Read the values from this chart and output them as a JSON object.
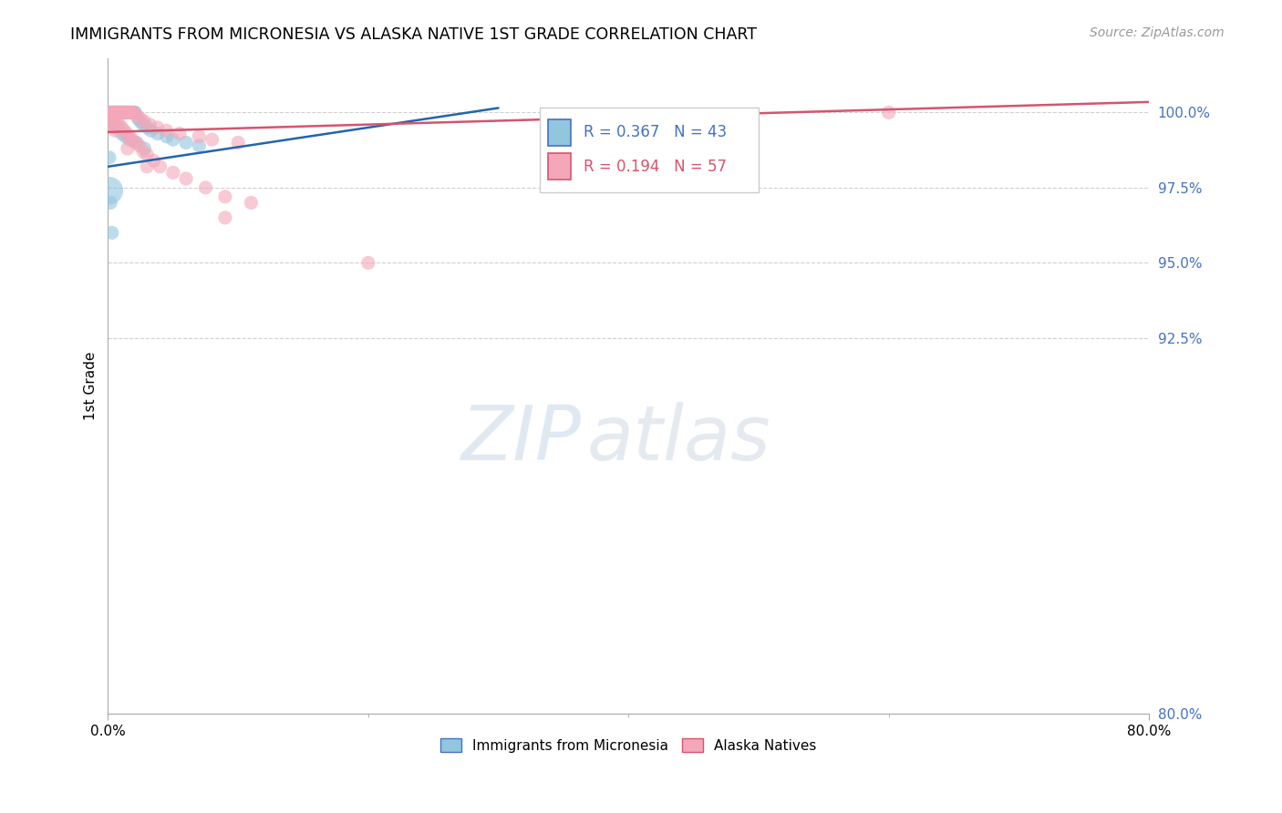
{
  "title": "IMMIGRANTS FROM MICRONESIA VS ALASKA NATIVE 1ST GRADE CORRELATION CHART",
  "source": "Source: ZipAtlas.com",
  "ylabel": "1st Grade",
  "yticks": [
    80.0,
    92.5,
    95.0,
    97.5,
    100.0
  ],
  "ytick_labels": [
    "80.0%",
    "92.5%",
    "95.0%",
    "97.5%",
    "100.0%"
  ],
  "xmin": 0.0,
  "xmax": 80.0,
  "ymin": 80.0,
  "ymax": 101.8,
  "legend_label1": "Immigrants from Micronesia",
  "legend_label2": "Alaska Natives",
  "r1": 0.367,
  "n1": 43,
  "r2": 0.194,
  "n2": 57,
  "color1": "#92c5de",
  "color2": "#f4a7b9",
  "trendline1_color": "#2166ac",
  "trendline2_color": "#d6546e",
  "watermark_zip": "ZIP",
  "watermark_atlas": "atlas",
  "blue_scatter_x": [
    0.2,
    0.3,
    0.4,
    0.5,
    0.6,
    0.7,
    0.8,
    0.9,
    1.0,
    1.1,
    1.2,
    1.3,
    1.4,
    1.5,
    1.6,
    1.7,
    1.8,
    1.9,
    2.0,
    2.1,
    2.3,
    2.5,
    2.7,
    3.0,
    3.3,
    3.8,
    4.5,
    5.0,
    6.0,
    7.0,
    0.15,
    0.25,
    0.35,
    0.55,
    0.75,
    1.05,
    1.35,
    1.65,
    2.2,
    2.8,
    0.1,
    0.2,
    0.3
  ],
  "blue_scatter_y": [
    100.0,
    100.0,
    100.0,
    100.0,
    100.0,
    100.0,
    100.0,
    100.0,
    100.0,
    100.0,
    100.0,
    100.0,
    100.0,
    100.0,
    100.0,
    100.0,
    100.0,
    100.0,
    100.0,
    100.0,
    99.8,
    99.7,
    99.6,
    99.5,
    99.4,
    99.3,
    99.2,
    99.1,
    99.0,
    98.9,
    99.9,
    99.8,
    99.7,
    99.6,
    99.5,
    99.3,
    99.2,
    99.1,
    99.0,
    98.8,
    98.5,
    97.0,
    96.0
  ],
  "pink_scatter_x": [
    0.2,
    0.3,
    0.4,
    0.5,
    0.6,
    0.7,
    0.8,
    0.9,
    1.0,
    1.1,
    1.2,
    1.3,
    1.4,
    1.5,
    1.6,
    1.7,
    1.8,
    1.9,
    2.0,
    2.2,
    2.5,
    2.8,
    3.2,
    3.8,
    4.5,
    5.5,
    7.0,
    8.0,
    10.0,
    60.0,
    0.25,
    0.45,
    0.65,
    0.85,
    1.05,
    1.25,
    1.45,
    1.65,
    1.85,
    2.1,
    2.4,
    2.7,
    3.0,
    3.5,
    4.0,
    5.0,
    6.0,
    7.5,
    9.0,
    11.0,
    0.15,
    0.35,
    0.55,
    1.5,
    3.0,
    9.0,
    20.0
  ],
  "pink_scatter_y": [
    100.0,
    100.0,
    100.0,
    100.0,
    100.0,
    100.0,
    100.0,
    100.0,
    100.0,
    100.0,
    100.0,
    100.0,
    100.0,
    100.0,
    100.0,
    100.0,
    100.0,
    100.0,
    100.0,
    99.9,
    99.8,
    99.7,
    99.6,
    99.5,
    99.4,
    99.3,
    99.2,
    99.1,
    99.0,
    100.0,
    99.9,
    99.8,
    99.7,
    99.6,
    99.5,
    99.4,
    99.3,
    99.2,
    99.1,
    99.0,
    98.9,
    98.7,
    98.6,
    98.4,
    98.2,
    98.0,
    97.8,
    97.5,
    97.2,
    97.0,
    99.6,
    99.5,
    99.4,
    98.8,
    98.2,
    96.5,
    95.0
  ],
  "large_blue_dot_x": 0.1,
  "large_blue_dot_y": 97.4,
  "trendline1_x0": 0.0,
  "trendline1_y0": 98.2,
  "trendline1_x1": 30.0,
  "trendline1_y1": 100.15,
  "trendline2_x0": 0.0,
  "trendline2_y0": 99.35,
  "trendline2_x1": 80.0,
  "trendline2_y1": 100.35
}
